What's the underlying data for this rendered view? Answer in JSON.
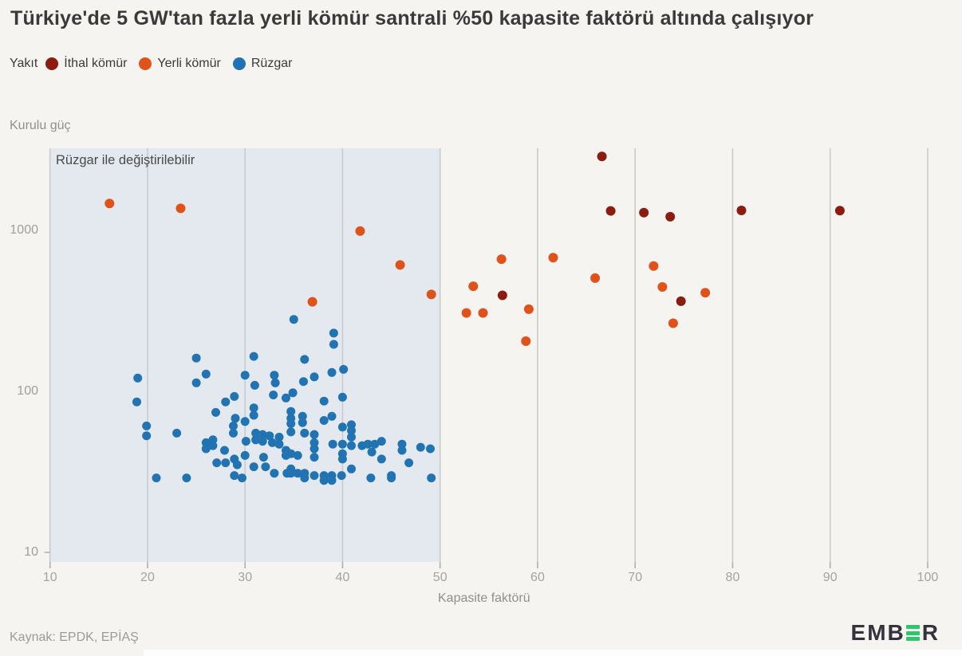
{
  "title": "Türkiye'de 5 GW'tan fazla yerli kömür santrali %50 kapasite faktörü altında çalışıyor",
  "legend": {
    "label": "Yakıt",
    "items": [
      {
        "label": "İthal kömür",
        "color": "#8a1c10"
      },
      {
        "label": "Yerli kömür",
        "color": "#df521a"
      },
      {
        "label": "Rüzgar",
        "color": "#2173b2"
      }
    ]
  },
  "y_axis_label": "Kurulu güç",
  "x_axis_label": "Kapasite faktörü",
  "source": "Kaynak: EPDK, EPİAŞ",
  "logo": {
    "text": "EMBER",
    "part1": "EMB",
    "part2": "R",
    "accent_color": "#2fc56d"
  },
  "colors": {
    "background": "#f5f4f1",
    "shaded_region": "#e3e9ee",
    "gridline": "#c9cbcc",
    "tick": "#b0b0b0"
  },
  "chart_data": {
    "type": "scatter",
    "title": "Türkiye'de 5 GW'tan fazla yerli kömür santrali %50 kapasite faktörü altında çalışıyor",
    "xlabel": "Kapasite faktörü",
    "ylabel": "Kurulu güç",
    "x_range": [
      10,
      100
    ],
    "y_scale": "log",
    "y_ticks": [
      10,
      100,
      1000
    ],
    "x_ticks": [
      10,
      20,
      30,
      40,
      50,
      60,
      70,
      80,
      90,
      100
    ],
    "grid": "vertical",
    "legend_position": "top",
    "shaded_region": {
      "x_from": 10,
      "x_to": 50,
      "label": "Rüzgar ile değiştirilebilir"
    },
    "series": [
      {
        "name": "Rüzgar",
        "slug": "ruzgar",
        "color": "#2173b2",
        "radius": 5.5,
        "points": [
          [
            19.0,
            121
          ],
          [
            18.9,
            86
          ],
          [
            25.0,
            161
          ],
          [
            26.0,
            128
          ],
          [
            25.0,
            113
          ],
          [
            30.9,
            165
          ],
          [
            30.0,
            126
          ],
          [
            31.0,
            109
          ],
          [
            33.0,
            126
          ],
          [
            33.1,
            113
          ],
          [
            28.9,
            93
          ],
          [
            28.0,
            86
          ],
          [
            32.9,
            95
          ],
          [
            34.2,
            91
          ],
          [
            35.0,
            280
          ],
          [
            39.1,
            230
          ],
          [
            39.1,
            196
          ],
          [
            36.1,
            158
          ],
          [
            40.1,
            137
          ],
          [
            38.9,
            131
          ],
          [
            37.1,
            123
          ],
          [
            36.0,
            115
          ],
          [
            34.9,
            98
          ],
          [
            40.0,
            92
          ],
          [
            38.1,
            87
          ],
          [
            19.9,
            61
          ],
          [
            19.9,
            53
          ],
          [
            23.0,
            55
          ],
          [
            27.0,
            74
          ],
          [
            29.0,
            68
          ],
          [
            30.9,
            79
          ],
          [
            30.9,
            71
          ],
          [
            28.8,
            61
          ],
          [
            28.8,
            55
          ],
          [
            30.0,
            65
          ],
          [
            30.1,
            49
          ],
          [
            31.1,
            55
          ],
          [
            31.1,
            50
          ],
          [
            26.0,
            48
          ],
          [
            26.0,
            44
          ],
          [
            26.7,
            50
          ],
          [
            26.7,
            46
          ],
          [
            27.1,
            36
          ],
          [
            27.9,
            43
          ],
          [
            28.0,
            36
          ],
          [
            28.9,
            38
          ],
          [
            29.2,
            35
          ],
          [
            30.0,
            40
          ],
          [
            31.8,
            54
          ],
          [
            31.8,
            49
          ],
          [
            32.5,
            53
          ],
          [
            32.8,
            48
          ],
          [
            33.5,
            52
          ],
          [
            33.5,
            47
          ],
          [
            34.2,
            43
          ],
          [
            34.2,
            40
          ],
          [
            31.9,
            39
          ],
          [
            32.1,
            34
          ],
          [
            30.9,
            34
          ],
          [
            33.0,
            31
          ],
          [
            34.3,
            31
          ],
          [
            20.9,
            29
          ],
          [
            24.0,
            29
          ],
          [
            28.9,
            30
          ],
          [
            29.7,
            29
          ],
          [
            34.7,
            75
          ],
          [
            34.7,
            68
          ],
          [
            34.7,
            63
          ],
          [
            34.7,
            56
          ],
          [
            35.9,
            70
          ],
          [
            35.9,
            64
          ],
          [
            38.1,
            66
          ],
          [
            38.9,
            70
          ],
          [
            36.1,
            55
          ],
          [
            37.1,
            54
          ],
          [
            37.1,
            48
          ],
          [
            37.1,
            44
          ],
          [
            34.7,
            41
          ],
          [
            35.4,
            40
          ],
          [
            37.1,
            39
          ],
          [
            39.0,
            47
          ],
          [
            40.0,
            60
          ],
          [
            40.9,
            62
          ],
          [
            40.9,
            57
          ],
          [
            40.0,
            47
          ],
          [
            40.0,
            41
          ],
          [
            40.0,
            38
          ],
          [
            40.9,
            52
          ],
          [
            40.9,
            46
          ],
          [
            42.0,
            46
          ],
          [
            42.6,
            47
          ],
          [
            43.3,
            47
          ],
          [
            44.0,
            49
          ],
          [
            43.0,
            42
          ],
          [
            44.0,
            38
          ],
          [
            46.1,
            47
          ],
          [
            46.1,
            43
          ],
          [
            46.8,
            36
          ],
          [
            48.0,
            45
          ],
          [
            49.0,
            44
          ],
          [
            45.0,
            30
          ],
          [
            45.0,
            29
          ],
          [
            42.9,
            29
          ],
          [
            49.1,
            29
          ],
          [
            34.7,
            33
          ],
          [
            34.7,
            31
          ],
          [
            35.4,
            31
          ],
          [
            36.1,
            31
          ],
          [
            36.1,
            29
          ],
          [
            37.1,
            30
          ],
          [
            38.1,
            30
          ],
          [
            38.1,
            28
          ],
          [
            38.9,
            30
          ],
          [
            38.9,
            28
          ],
          [
            39.9,
            30
          ],
          [
            40.9,
            33
          ]
        ]
      },
      {
        "name": "Yerli kömür",
        "slug": "yerli-komur",
        "color": "#df521a",
        "radius": 6,
        "points": [
          [
            16.1,
            1470
          ],
          [
            23.4,
            1370
          ],
          [
            41.8,
            990
          ],
          [
            45.9,
            610
          ],
          [
            36.9,
            360
          ],
          [
            49.1,
            400
          ],
          [
            53.4,
            450
          ],
          [
            52.7,
            307
          ],
          [
            54.4,
            307
          ],
          [
            56.3,
            663
          ],
          [
            59.1,
            324
          ],
          [
            58.8,
            205
          ],
          [
            61.6,
            677
          ],
          [
            65.9,
            505
          ],
          [
            71.9,
            600
          ],
          [
            72.8,
            445
          ],
          [
            73.9,
            265
          ],
          [
            77.2,
            410
          ]
        ]
      },
      {
        "name": "İthal kömür",
        "slug": "ithal-komur",
        "color": "#8a1c10",
        "radius": 6,
        "points": [
          [
            66.6,
            2880
          ],
          [
            67.5,
            1320
          ],
          [
            70.9,
            1290
          ],
          [
            73.6,
            1215
          ],
          [
            80.9,
            1330
          ],
          [
            91.0,
            1325
          ],
          [
            56.4,
            395
          ],
          [
            74.7,
            363
          ]
        ]
      }
    ]
  }
}
